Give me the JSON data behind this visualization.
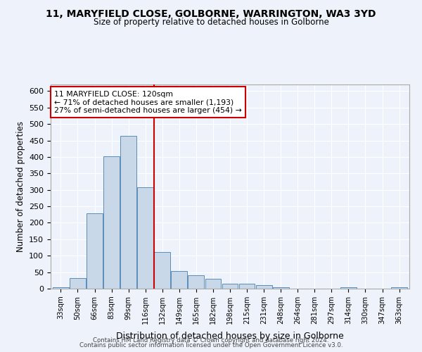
{
  "title": "11, MARYFIELD CLOSE, GOLBORNE, WARRINGTON, WA3 3YD",
  "subtitle": "Size of property relative to detached houses in Golborne",
  "xlabel": "Distribution of detached houses by size in Golborne",
  "ylabel": "Number of detached properties",
  "categories": [
    "33sqm",
    "50sqm",
    "66sqm",
    "83sqm",
    "99sqm",
    "116sqm",
    "132sqm",
    "149sqm",
    "165sqm",
    "182sqm",
    "198sqm",
    "215sqm",
    "231sqm",
    "248sqm",
    "264sqm",
    "281sqm",
    "297sqm",
    "314sqm",
    "330sqm",
    "347sqm",
    "363sqm"
  ],
  "values": [
    5,
    32,
    228,
    401,
    463,
    307,
    111,
    54,
    40,
    30,
    14,
    14,
    10,
    5,
    0,
    0,
    0,
    5,
    0,
    0,
    5
  ],
  "bar_color": "#c8d8e8",
  "bar_edge_color": "#5b8db8",
  "vline_x": 5.5,
  "vline_color": "#cc0000",
  "annotation_text": "11 MARYFIELD CLOSE: 120sqm\n← 71% of detached houses are smaller (1,193)\n27% of semi-detached houses are larger (454) →",
  "annotation_box_color": "white",
  "annotation_box_edge": "#cc0000",
  "ylim": [
    0,
    620
  ],
  "yticks": [
    0,
    50,
    100,
    150,
    200,
    250,
    300,
    350,
    400,
    450,
    500,
    550,
    600
  ],
  "background_color": "#eef2fa",
  "grid_color": "white",
  "footer1": "Contains HM Land Registry data © Crown copyright and database right 2024.",
  "footer2": "Contains public sector information licensed under the Open Government Licence v3.0."
}
